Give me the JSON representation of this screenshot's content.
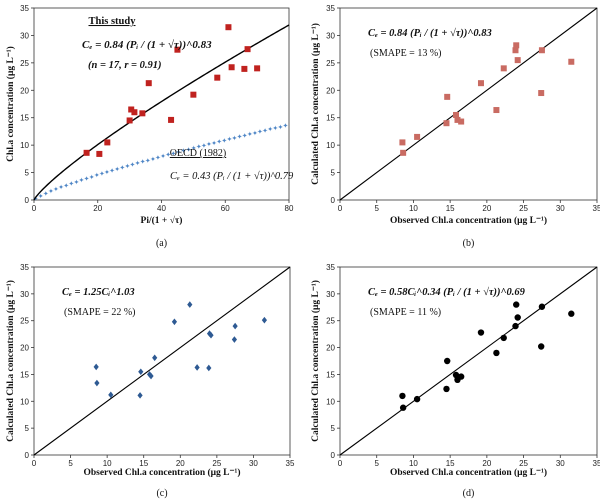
{
  "colors": {
    "red": "#c0221f",
    "blue": "#4f86c6",
    "navy": "#2e5a93",
    "black": "#000000",
    "line": "#000000"
  },
  "chart_data": [
    {
      "panel": "(a)",
      "type": "scatter",
      "xlabel": "Pi/(1 + √τ)",
      "ylabel": "Chl.a concentration (μg L⁻¹)",
      "xlim": [
        0,
        80
      ],
      "ylim": [
        0,
        35
      ],
      "xticks": [
        0,
        20,
        40,
        60,
        80
      ],
      "yticks": [
        0,
        5,
        10,
        15,
        20,
        25,
        30,
        35
      ],
      "annotations": {
        "study_title": "This study",
        "study_eq": "Cₑ = 0.84 (Pᵢ / (1 + √τ))^0.83",
        "study_stats": "(n = 17, r = 0.91)",
        "oecd_title": "OECD (1982)",
        "oecd_eq": "Cₑ = 0.43 (Pᵢ / (1 + √τ))^0.79"
      },
      "series": [
        {
          "name": "This study",
          "values": [
            [
              16.5,
              8.6
            ],
            [
              20.5,
              8.4
            ],
            [
              23,
              10.5
            ],
            [
              30,
              14.5
            ],
            [
              30.5,
              16.5
            ],
            [
              31.5,
              16
            ],
            [
              34,
              15.8
            ],
            [
              36,
              21.3
            ],
            [
              43,
              14.6
            ],
            [
              45,
              27.4
            ],
            [
              50,
              19.2
            ],
            [
              57.5,
              22.3
            ],
            [
              61,
              31.5
            ],
            [
              62,
              24.2
            ],
            [
              66,
              23.9
            ],
            [
              67,
              27.5
            ],
            [
              70,
              24
            ]
          ]
        },
        {
          "name": "This study fit",
          "fit": {
            "a": 0.84,
            "b": 0.83,
            "x": [
              0,
              80
            ]
          }
        },
        {
          "name": "OECD (1982)",
          "fit": {
            "a": 0.43,
            "b": 0.79,
            "x": [
              0,
              80
            ]
          }
        }
      ]
    },
    {
      "panel": "(b)",
      "type": "scatter",
      "xlabel": "Observed Chl.a concentration (μg L⁻¹)",
      "ylabel": "Calculated Chl.a concentration (μg L⁻¹)",
      "xlim": [
        0,
        35
      ],
      "ylim": [
        0,
        35
      ],
      "xticks": [
        0,
        5,
        10,
        15,
        20,
        25,
        30,
        35
      ],
      "yticks": [
        0,
        5,
        10,
        15,
        20,
        25,
        30,
        35
      ],
      "annotations": {
        "eq": "Cₑ = 0.84 (Pᵢ / (1 + √τ))^0.83",
        "smape": "(SMAPE = 13 %)"
      },
      "values": [
        [
          8.5,
          10.5
        ],
        [
          8.6,
          8.6
        ],
        [
          10.5,
          11.5
        ],
        [
          14.5,
          14
        ],
        [
          14.6,
          18.8
        ],
        [
          15.8,
          15.5
        ],
        [
          16,
          14.6
        ],
        [
          16.5,
          14.3
        ],
        [
          19.2,
          21.3
        ],
        [
          21.3,
          16.4
        ],
        [
          22.3,
          24
        ],
        [
          23.9,
          27.3
        ],
        [
          24,
          28.2
        ],
        [
          24.2,
          25.5
        ],
        [
          27.4,
          19.5
        ],
        [
          27.5,
          27.3
        ],
        [
          31.5,
          25.2
        ]
      ]
    },
    {
      "panel": "(c)",
      "type": "scatter",
      "xlabel": "Observed Chl.a concentration (μg L⁻¹)",
      "ylabel": "Calculated Chl.a concentration (μg L⁻¹)",
      "xlim": [
        0,
        35
      ],
      "ylim": [
        0,
        35
      ],
      "xticks": [
        0,
        5,
        10,
        15,
        20,
        25,
        30,
        35
      ],
      "yticks": [
        0,
        5,
        10,
        15,
        20,
        25,
        30,
        35
      ],
      "annotations": {
        "eq": "Cₑ = 1.25Cᵢ^1.03",
        "smape": "(SMAPE = 22 %)"
      },
      "values": [
        [
          8.5,
          16.4
        ],
        [
          8.6,
          13.4
        ],
        [
          10.5,
          11.2
        ],
        [
          14.5,
          11.1
        ],
        [
          14.6,
          15.5
        ],
        [
          15.8,
          15
        ],
        [
          16,
          14.7
        ],
        [
          16.5,
          18.1
        ],
        [
          19.2,
          24.8
        ],
        [
          21.3,
          28
        ],
        [
          22.3,
          16.3
        ],
        [
          23.9,
          16.2
        ],
        [
          24,
          22.6
        ],
        [
          24.2,
          22.3
        ],
        [
          27.4,
          21.5
        ],
        [
          27.5,
          24
        ],
        [
          31.5,
          25.1
        ]
      ]
    },
    {
      "panel": "(d)",
      "type": "scatter",
      "xlabel": "Observed Chl.a concentration (μg L⁻¹)",
      "ylabel": "Calculated Chl.a concentration (μg L⁻¹)",
      "xlim": [
        0,
        35
      ],
      "ylim": [
        0,
        35
      ],
      "xticks": [
        0,
        5,
        10,
        15,
        20,
        25,
        30,
        35
      ],
      "yticks": [
        0,
        5,
        10,
        15,
        20,
        25,
        30,
        35
      ],
      "annotations": {
        "eq": "Cₑ = 0.58Cᵢ^0.34 (Pᵢ / (1 + √τ))^0.69",
        "smape": "(SMAPE = 11 %)"
      },
      "values": [
        [
          8.5,
          11
        ],
        [
          8.6,
          8.8
        ],
        [
          10.5,
          10.4
        ],
        [
          14.5,
          12.3
        ],
        [
          14.6,
          17.5
        ],
        [
          15.8,
          14.9
        ],
        [
          16,
          14
        ],
        [
          16.5,
          14.6
        ],
        [
          19.2,
          22.8
        ],
        [
          21.3,
          19
        ],
        [
          22.3,
          21.8
        ],
        [
          23.9,
          24
        ],
        [
          24,
          28
        ],
        [
          24.2,
          25.6
        ],
        [
          27.4,
          20.2
        ],
        [
          27.5,
          27.6
        ],
        [
          31.5,
          26.3
        ]
      ]
    }
  ]
}
